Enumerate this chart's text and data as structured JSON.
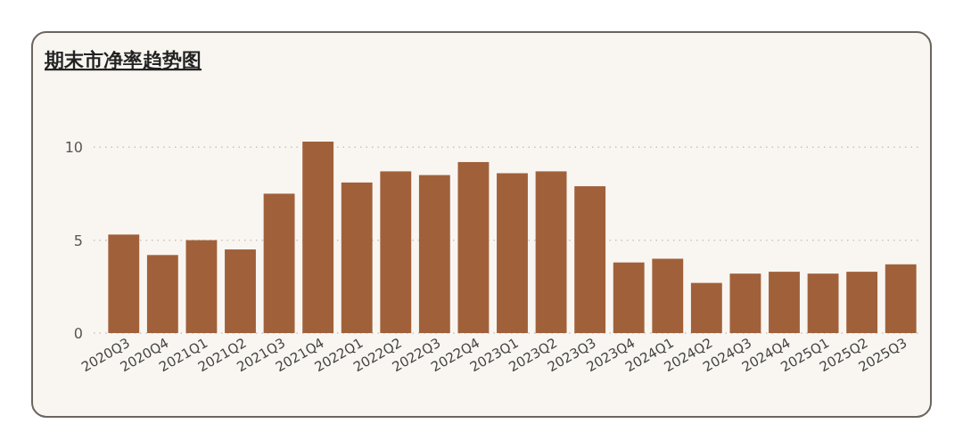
{
  "chart_data": {
    "type": "bar",
    "title": "期末市净率趋势图",
    "categories": [
      "2020Q3",
      "2020Q4",
      "2021Q1",
      "2021Q2",
      "2021Q3",
      "2021Q4",
      "2022Q1",
      "2022Q2",
      "2022Q3",
      "2022Q4",
      "2023Q1",
      "2023Q2",
      "2023Q3",
      "2023Q4",
      "2024Q1",
      "2024Q2",
      "2024Q3",
      "2024Q4",
      "2025Q1",
      "2025Q2",
      "2025Q3"
    ],
    "values": [
      5.3,
      4.2,
      5.0,
      4.5,
      7.5,
      10.3,
      8.1,
      8.7,
      8.5,
      9.2,
      8.6,
      8.7,
      7.9,
      3.8,
      4.0,
      2.7,
      3.2,
      3.3,
      3.2,
      3.3,
      3.7
    ],
    "color": "#a0613a",
    "ylim": [
      0,
      10.3
    ],
    "yticks": [
      0,
      5,
      10
    ],
    "grid": "y"
  }
}
